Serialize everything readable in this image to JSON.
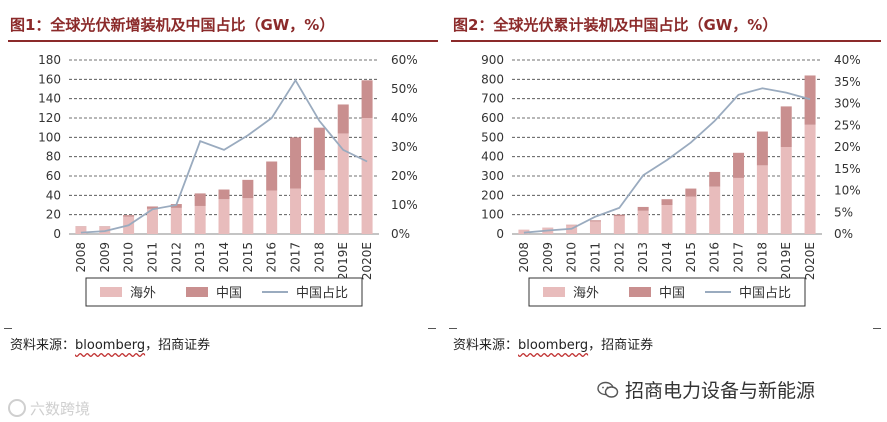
{
  "panels": [
    {
      "title": "图1：全球光伏新增装机及中国占比（GW，%）",
      "source": {
        "prefix": "资料来源：",
        "name": "bloomberg",
        "suffix": "，招商证券"
      }
    },
    {
      "title": "图2：全球光伏累计装机及中国占比（GW，%）",
      "source": {
        "prefix": "资料来源：",
        "name": "bloomberg",
        "suffix": "，招商证券"
      }
    }
  ],
  "footer": {
    "brand": "招商电力设备与新能源",
    "watermark": "六数跨境"
  },
  "colors": {
    "overseas": "#e8bcbc",
    "china": "#c98f8f",
    "share": "#9aabbf",
    "title": "#8b2a2a"
  },
  "chart_data": [
    {
      "type": "bar",
      "stacked": true,
      "categories": [
        "2008",
        "2009",
        "2010",
        "2011",
        "2012",
        "2013",
        "2014",
        "2015",
        "2016",
        "2017",
        "2018",
        "2019E",
        "2020E"
      ],
      "series": [
        {
          "name": "海外",
          "values": [
            7.5,
            7.5,
            18,
            26,
            27,
            29,
            36,
            37,
            45,
            47,
            66,
            104,
            120
          ]
        },
        {
          "name": "中国",
          "values": [
            0.5,
            0.5,
            1.5,
            2.5,
            4,
            13,
            10,
            19,
            30,
            53,
            44,
            30,
            39
          ]
        },
        {
          "name": "中国占比",
          "axis": "right",
          "values": [
            0.5,
            1,
            3,
            8.5,
            10,
            32,
            29,
            34,
            40,
            53,
            39,
            29,
            25
          ]
        }
      ],
      "ylim": [
        0,
        180
      ],
      "yticks": [
        "0",
        "20",
        "40",
        "60",
        "80",
        "100",
        "120",
        "140",
        "160",
        "180"
      ],
      "y2lim": [
        0,
        60
      ],
      "y2ticks": [
        "0%",
        "10%",
        "20%",
        "30%",
        "40%",
        "50%",
        "60%"
      ],
      "grid": true,
      "legend": "bottom"
    },
    {
      "type": "bar",
      "stacked": true,
      "categories": [
        "2008",
        "2009",
        "2010",
        "2011",
        "2012",
        "2013",
        "2014",
        "2015",
        "2016",
        "2017",
        "2018",
        "2019E",
        "2020E"
      ],
      "series": [
        {
          "name": "海外",
          "values": [
            22,
            32,
            45,
            65,
            92,
            120,
            150,
            193,
            245,
            290,
            355,
            450,
            565
          ]
        },
        {
          "name": "中国",
          "values": [
            0.5,
            1,
            3,
            6,
            8,
            20,
            30,
            42,
            76,
            130,
            175,
            210,
            255
          ]
        },
        {
          "name": "中国占比",
          "axis": "right",
          "values": [
            0.3,
            0.8,
            1.2,
            4,
            6,
            13.5,
            17,
            21,
            26,
            32,
            33.5,
            32.5,
            31
          ]
        }
      ],
      "ylim": [
        0,
        900
      ],
      "yticks": [
        "0",
        "100",
        "200",
        "300",
        "400",
        "500",
        "600",
        "700",
        "800",
        "900"
      ],
      "y2lim": [
        0,
        40
      ],
      "y2ticks": [
        "0%",
        "5%",
        "10%",
        "15%",
        "20%",
        "25%",
        "30%",
        "35%",
        "40%"
      ],
      "grid": true,
      "legend": "bottom"
    }
  ]
}
